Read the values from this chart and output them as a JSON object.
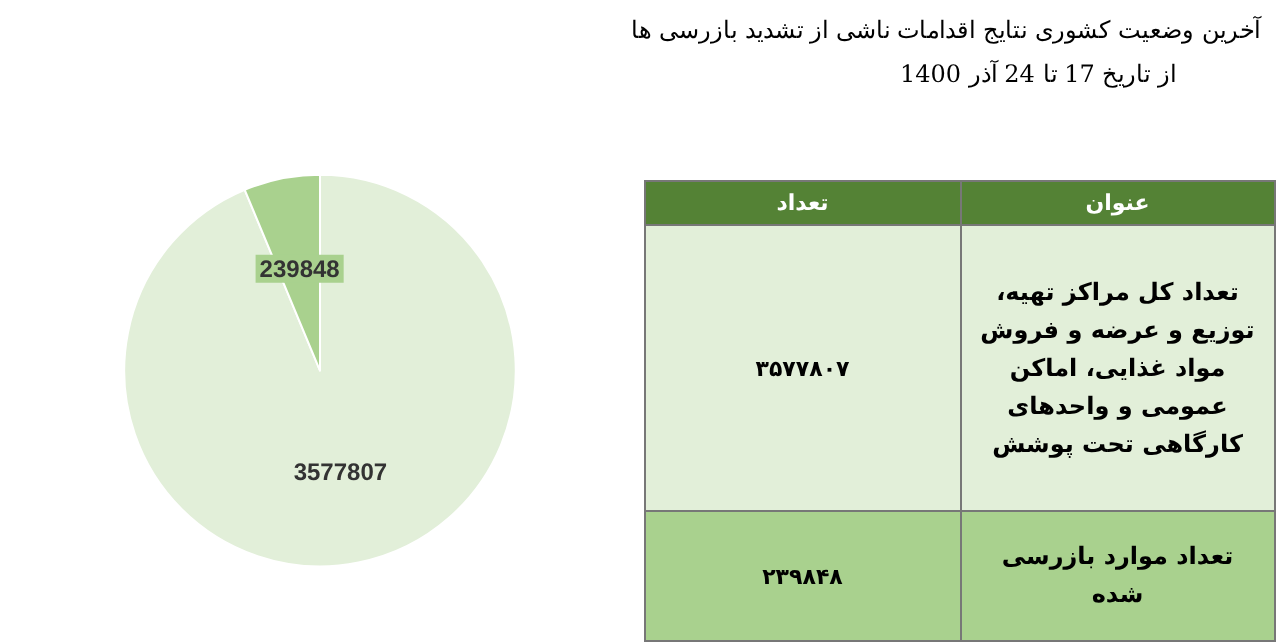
{
  "chart_data": [
    {
      "type": "pie",
      "categories": [
        null,
        null
      ],
      "values": [
        3577807,
        239848
      ],
      "colors": [
        "#e2efd9",
        "#a9d18e"
      ],
      "data_labels": true
    },
    {
      "type": "other",
      "title": "آخرین وضعیت کشوری نتایج اقدامات ناشی از تشدید بازرسی ها",
      "subtitle": "از تاریخ 17 تا 24 آذر 1400",
      "annotations": [
        "عنوان",
        "تعداد",
        "تعداد کل مراکز تهیه، توزیع و عرضه و فروش مواد غذایی، اماکن عمومی و واحدهای کارگاهی تحت پوشش",
        "۳۵۷۷۸۰۷",
        "تعداد موارد بازرسی شده",
        "۲۳۹۸۴۸"
      ]
    }
  ]
}
